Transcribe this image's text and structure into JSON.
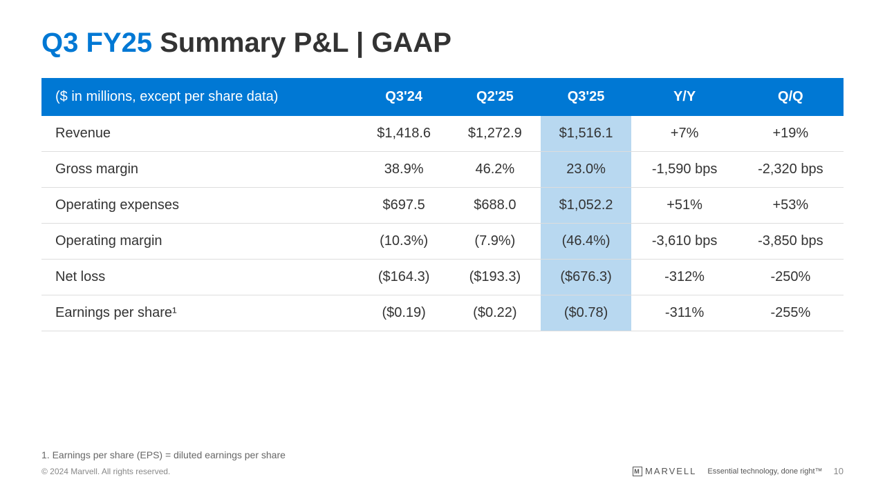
{
  "title": {
    "accent": "Q3 FY25",
    "rest": " Summary P&L | GAAP"
  },
  "table": {
    "header_bg": "#0078d4",
    "header_color": "#ffffff",
    "highlight_bg": "#b8d8f0",
    "border_color": "#dddddd",
    "columns": [
      "($ in millions, except per share data)",
      "Q3'24",
      "Q2'25",
      "Q3'25",
      "Y/Y",
      "Q/Q"
    ],
    "highlight_col_index": 3,
    "rows": [
      [
        "Revenue",
        "$1,418.6",
        "$1,272.9",
        "$1,516.1",
        "+7%",
        "+19%"
      ],
      [
        "Gross margin",
        "38.9%",
        "46.2%",
        "23.0%",
        "-1,590 bps",
        "-2,320 bps"
      ],
      [
        "Operating expenses",
        "$697.5",
        "$688.0",
        "$1,052.2",
        "+51%",
        "+53%"
      ],
      [
        "Operating margin",
        "(10.3%)",
        "(7.9%)",
        "(46.4%)",
        "-3,610 bps",
        "-3,850 bps"
      ],
      [
        "Net loss",
        "($164.3)",
        "($193.3)",
        "($676.3)",
        "-312%",
        "-250%"
      ],
      [
        "Earnings per share¹",
        "($0.19)",
        "($0.22)",
        "($0.78)",
        "-311%",
        "-255%"
      ]
    ]
  },
  "footnote": "1. Earnings per share (EPS) = diluted earnings per share",
  "footer": {
    "copyright": "© 2024 Marvell. All rights reserved.",
    "logo_text": "MARVELL",
    "tagline": "Essential technology, done right™",
    "page": "10"
  }
}
